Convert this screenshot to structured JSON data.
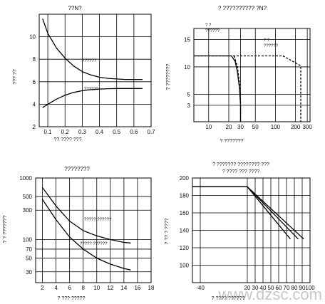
{
  "watermark": "www.dzsc.com",
  "chart_data": [
    {
      "type": "line",
      "title": "??N?",
      "xlabel": "?? ???? ???",
      "ylabel": "??? ??",
      "xlim": [
        0.05,
        0.7
      ],
      "ylim": [
        2,
        12
      ],
      "xticks": [
        0.1,
        0.2,
        0.3,
        0.4,
        0.5,
        0.6,
        0.7
      ],
      "yticks": [
        2,
        4,
        6,
        8,
        10
      ],
      "grid": true,
      "series": [
        {
          "name": "??????",
          "x": [
            0.07,
            0.1,
            0.15,
            0.2,
            0.25,
            0.3,
            0.35,
            0.4,
            0.45,
            0.5,
            0.55,
            0.6,
            0.65
          ],
          "y": [
            11.6,
            10.3,
            9.0,
            8.1,
            7.4,
            6.9,
            6.6,
            6.4,
            6.3,
            6.25,
            6.2,
            6.2,
            6.2
          ]
        },
        {
          "name": "??????",
          "x": [
            0.07,
            0.1,
            0.15,
            0.2,
            0.25,
            0.3,
            0.35,
            0.4,
            0.45,
            0.5,
            0.55,
            0.6,
            0.65
          ],
          "y": [
            3.7,
            4.0,
            4.45,
            4.8,
            5.05,
            5.2,
            5.3,
            5.35,
            5.38,
            5.4,
            5.4,
            5.4,
            5.4
          ]
        }
      ]
    },
    {
      "type": "line",
      "title": "? ?????????? ?N?",
      "xlabel": "? ???????",
      "ylabel": "? ????????",
      "xscale": "log",
      "xlim": [
        6,
        330
      ],
      "ylim": [
        0,
        17
      ],
      "xticks": [
        10,
        20,
        30,
        50,
        100,
        200,
        300
      ],
      "yticks": [
        3,
        5,
        10,
        15
      ],
      "grid": true,
      "annotations": [
        {
          "text": "? ?",
          "at": [
            7.5,
            14.3
          ]
        },
        {
          "text": "??????",
          "at": [
            7.5,
            13.2
          ]
        },
        {
          "text": "? ?",
          "at": [
            175,
            11.8
          ]
        },
        {
          "text": "??????",
          "at": [
            175,
            10.9
          ]
        }
      ],
      "series": [
        {
          "name": "? ?",
          "x": [
            6,
            22,
            25,
            27,
            29,
            30,
            30
          ],
          "y": [
            12,
            12,
            11.0,
            9.0,
            6.0,
            3.0,
            0
          ]
        },
        {
          "name": "? ?",
          "x": [
            6,
            130,
            240,
            240
          ],
          "y": [
            12,
            12,
            10.2,
            0
          ],
          "dashed": true
        },
        {
          "name": "",
          "x": [
            24,
            27,
            29,
            30,
            30
          ],
          "y": [
            12,
            10.0,
            7.0,
            4.0,
            0
          ],
          "dashed": true
        }
      ]
    },
    {
      "type": "line",
      "title": "????????",
      "xlabel": "? ??? ?????",
      "ylabel": "? ? ???????",
      "yscale": "log",
      "xlim": [
        1,
        18
      ],
      "ylim": [
        20,
        1000
      ],
      "xticks": [
        2,
        4,
        6,
        8,
        10,
        12,
        14,
        16,
        18
      ],
      "yticks": [
        30,
        50,
        70,
        100,
        300,
        500,
        1000
      ],
      "grid": true,
      "series": [
        {
          "name": "????? ??????",
          "x": [
            2,
            4,
            6,
            8,
            10,
            12,
            14,
            15
          ],
          "y": [
            700,
            350,
            200,
            140,
            115,
            100,
            90,
            88
          ]
        },
        {
          "name": "????? ??????",
          "x": [
            2,
            4,
            6,
            8,
            10,
            12,
            14,
            15
          ],
          "y": [
            450,
            210,
            110,
            70,
            50,
            40,
            34,
            32
          ]
        }
      ]
    },
    {
      "type": "line",
      "title": "? ??????? ???????? ???",
      "subtitle": "? ???? ??? ????",
      "xlabel": "? ???? ??????",
      "ylabel": "? ?? ? ????",
      "xlim": [
        -50,
        100
      ],
      "ylim": [
        80,
        200
      ],
      "xticks": [
        -40,
        20,
        30,
        40,
        50,
        60,
        70,
        80,
        90,
        100
      ],
      "yticks": [
        100,
        120,
        140,
        160,
        180,
        200
      ],
      "grid": true,
      "series": [
        {
          "name": "",
          "x": [
            -50,
            20,
            85
          ],
          "y": [
            190,
            190,
            130
          ]
        },
        {
          "name": "",
          "x": [
            -50,
            20,
            75
          ],
          "y": [
            190,
            190,
            130
          ]
        },
        {
          "name": "",
          "x": [
            -50,
            20,
            92
          ],
          "y": [
            190,
            190,
            130
          ]
        }
      ]
    }
  ]
}
